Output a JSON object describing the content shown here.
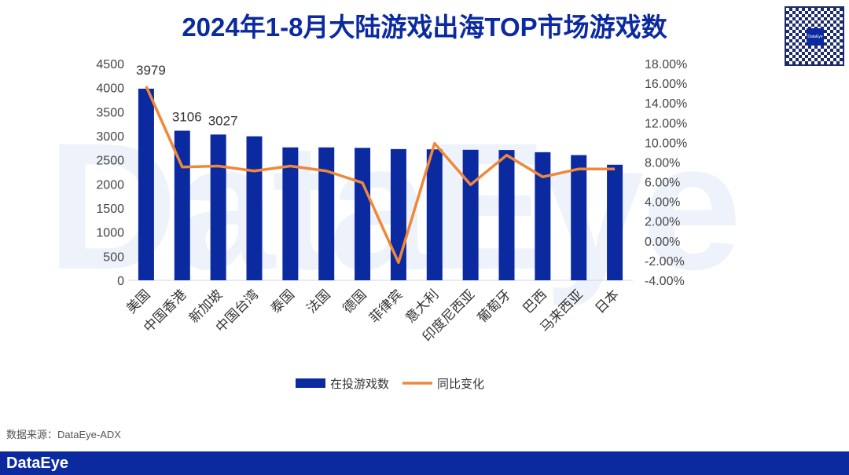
{
  "title": "2024年1-8月大陆游戏出海TOP市场游戏数",
  "source": "数据来源：DataEye-ADX",
  "brand": "DataEye",
  "chart_data": {
    "type": "bar+line",
    "title": "2024年1-8月大陆游戏出海TOP市场游戏数",
    "categories": [
      "美国",
      "中国香港",
      "新加坡",
      "中国台湾",
      "泰国",
      "法国",
      "德国",
      "菲律宾",
      "意大利",
      "印度尼西亚",
      "葡萄牙",
      "巴西",
      "马来西亚",
      "日本"
    ],
    "series": [
      {
        "name": "在投游戏数",
        "type": "bar",
        "axis": "left",
        "color": "#0b2aa0",
        "values": [
          3979,
          3106,
          3027,
          2990,
          2760,
          2760,
          2750,
          2725,
          2720,
          2710,
          2705,
          2660,
          2600,
          2400
        ]
      },
      {
        "name": "同比变化",
        "type": "line",
        "axis": "right",
        "color": "#f0883a",
        "values": [
          15.7,
          7.5,
          7.6,
          7.1,
          7.6,
          7.1,
          5.9,
          -2.2,
          9.9,
          5.7,
          8.7,
          6.5,
          7.3,
          7.3
        ]
      }
    ],
    "data_labels": [
      {
        "index": 0,
        "text": "3979"
      },
      {
        "index": 1,
        "text": "3106"
      },
      {
        "index": 2,
        "text": "3027"
      }
    ],
    "ylim_left": [
      0,
      4500
    ],
    "yticks_left": [
      "0",
      "500",
      "1000",
      "1500",
      "2000",
      "2500",
      "3000",
      "3500",
      "4000",
      "4500"
    ],
    "ylim_right": [
      -4,
      18
    ],
    "yticks_right": [
      "-4.00%",
      "-2.00%",
      "0.00%",
      "2.00%",
      "4.00%",
      "6.00%",
      "8.00%",
      "10.00%",
      "12.00%",
      "14.00%",
      "16.00%",
      "18.00%"
    ],
    "legend": "bottom",
    "grid": false
  }
}
